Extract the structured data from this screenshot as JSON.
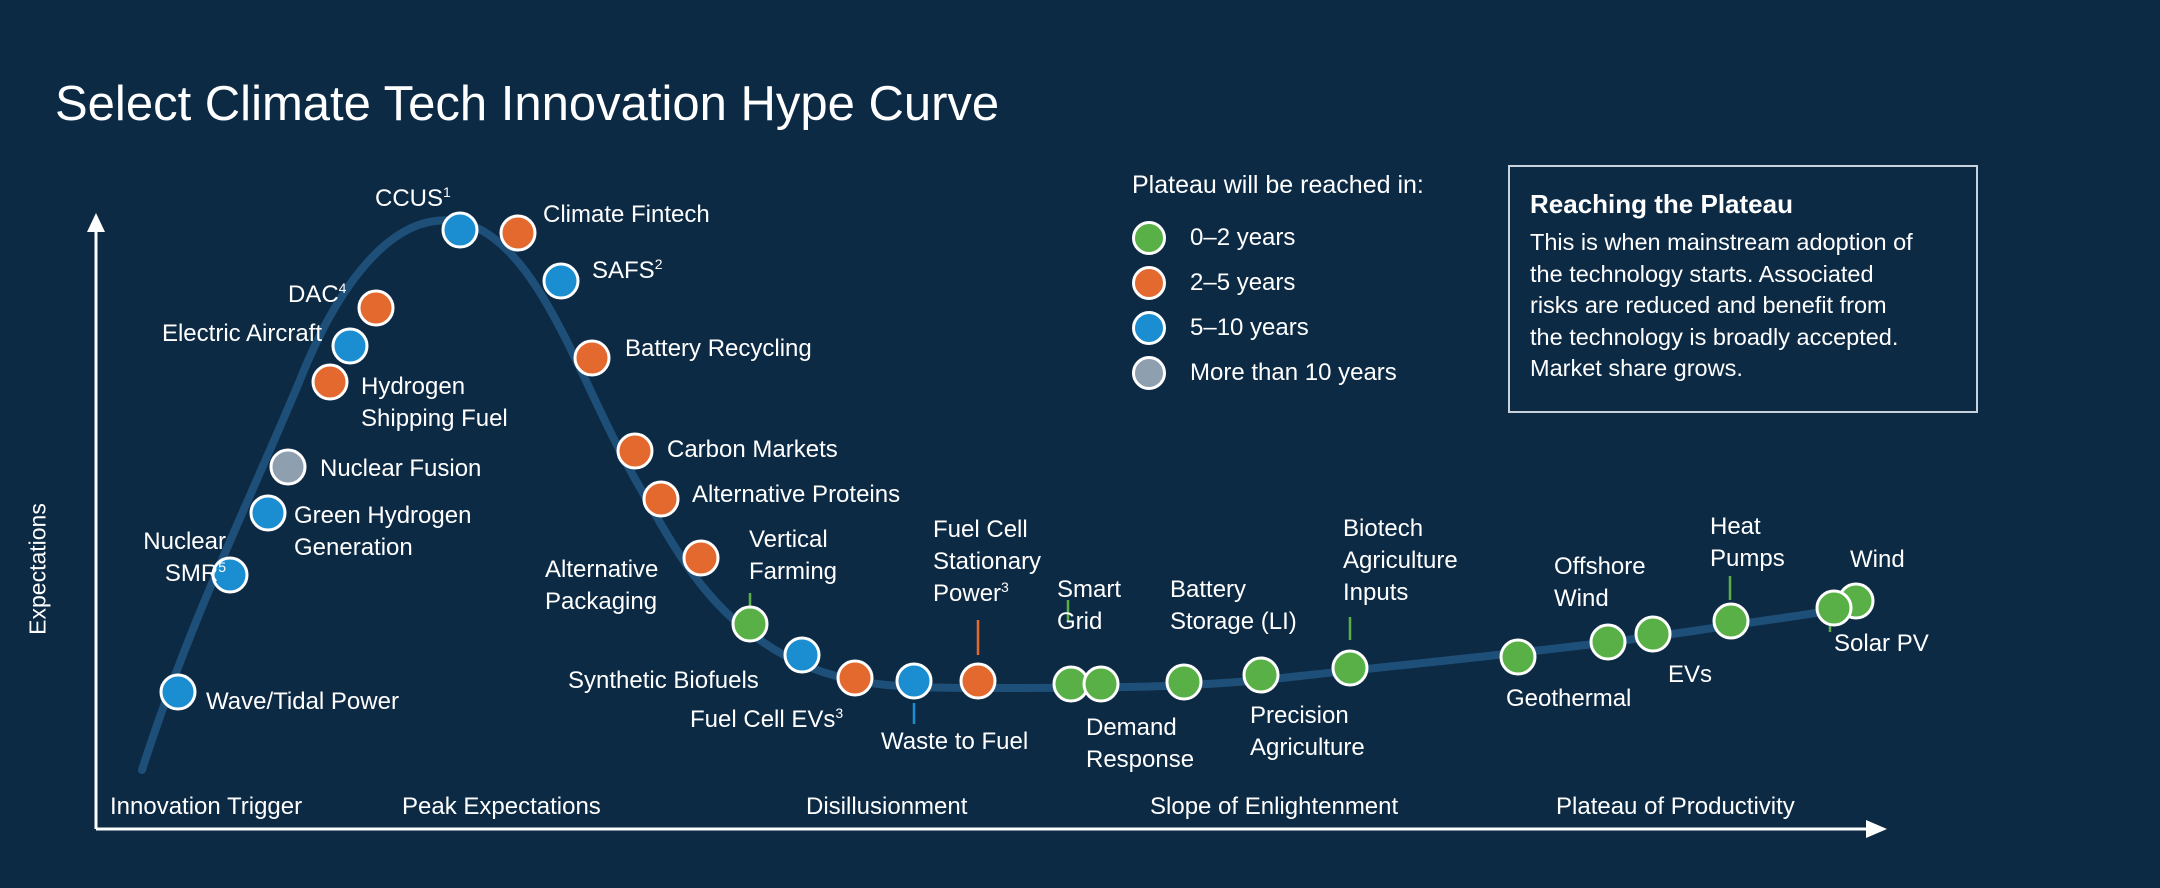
{
  "title": "Select Climate Tech Innovation Hype Curve",
  "y_axis_label": "Expectations",
  "phases": [
    "Innovation Trigger",
    "Peak Expectations",
    "Disillusionment",
    "Slope of Enlightenment",
    "Plateau of Productivity"
  ],
  "legend": {
    "title": "Plateau will be reached in:",
    "items": [
      {
        "label": "0–2 years",
        "color": "#58b047"
      },
      {
        "label": "2–5 years",
        "color": "#e3692f"
      },
      {
        "label": "5–10 years",
        "color": "#1a8ed0"
      },
      {
        "label": "More than 10 years",
        "color": "#8e9fb0"
      }
    ]
  },
  "info_box": {
    "title": "Reaching the Plateau",
    "lines": [
      "This is when mainstream adoption of",
      "the technology starts. Associated",
      "risks are reduced and benefit from",
      "the technology is broadly accepted.",
      "Market share grows."
    ]
  },
  "technologies": {
    "wave_tidal": {
      "label": "Wave/Tidal Power",
      "category": "5–10 years"
    },
    "nuclear_smr": {
      "line1": "Nuclear",
      "line2": "SMR",
      "sup": "5",
      "category": "5–10 years"
    },
    "green_hydrogen": {
      "line1": "Green Hydrogen",
      "line2": "Generation",
      "category": "5–10 years"
    },
    "nuclear_fusion": {
      "label": "Nuclear Fusion",
      "category": "More than 10 years"
    },
    "hydrogen_shipping": {
      "line1": "Hydrogen",
      "line2": "Shipping Fuel",
      "category": "2–5 years"
    },
    "electric_aircraft": {
      "label": "Electric Aircraft",
      "category": "5–10 years"
    },
    "dac": {
      "label": "DAC",
      "sup": "4",
      "category": "2–5 years"
    },
    "ccus": {
      "label": "CCUS",
      "sup": "1",
      "category": "5–10 years"
    },
    "climate_fintech": {
      "label": "Climate Fintech",
      "category": "2–5 years"
    },
    "safs": {
      "label": "SAFS",
      "sup": "2",
      "category": "5–10 years"
    },
    "battery_recycling": {
      "label": "Battery Recycling",
      "category": "2–5 years"
    },
    "carbon_markets": {
      "label": "Carbon Markets",
      "category": "2–5 years"
    },
    "alternative_proteins": {
      "label": "Alternative Proteins",
      "category": "2–5 years"
    },
    "alternative_packaging": {
      "line1": "Alternative",
      "line2": "Packaging",
      "category": "2–5 years"
    },
    "vertical_farming": {
      "line1": "Vertical",
      "line2": "Farming",
      "category": "0–2 years"
    },
    "synthetic_biofuels": {
      "label": "Synthetic Biofuels",
      "category": "5–10 years"
    },
    "fuel_cell_evs": {
      "label": "Fuel Cell EVs",
      "sup": "3",
      "category": "2–5 years"
    },
    "waste_to_fuel": {
      "label": "Waste to Fuel",
      "category": "5–10 years"
    },
    "fuel_cell_stationary": {
      "line1": "Fuel Cell",
      "line2": "Stationary",
      "line3": "Power",
      "sup": "3",
      "category": "2–5 years"
    },
    "smart_grid": {
      "line1": "Smart",
      "line2": "Grid",
      "category": "0–2 years"
    },
    "demand_response": {
      "line1": "Demand",
      "line2": "Response",
      "category": "0–2 years"
    },
    "battery_storage": {
      "line1": "Battery",
      "line2": "Storage (LI)",
      "category": "0–2 years"
    },
    "precision_agriculture": {
      "line1": "Precision",
      "line2": "Agriculture",
      "category": "0–2 years"
    },
    "biotech_agriculture": {
      "line1": "Biotech",
      "line2": "Agriculture",
      "line3": "Inputs",
      "category": "0–2 years"
    },
    "geothermal": {
      "label": "Geothermal",
      "category": "0–2 years"
    },
    "offshore_wind": {
      "line1": "Offshore",
      "line2": "Wind",
      "category": "0–2 years"
    },
    "evs": {
      "label": "EVs",
      "category": "0–2 years"
    },
    "heat_pumps": {
      "line1": "Heat",
      "line2": "Pumps",
      "category": "0–2 years"
    },
    "wind": {
      "label": "Wind",
      "category": "0–2 years"
    },
    "solar_pv": {
      "label": "Solar PV",
      "category": "0–2 years"
    }
  }
}
